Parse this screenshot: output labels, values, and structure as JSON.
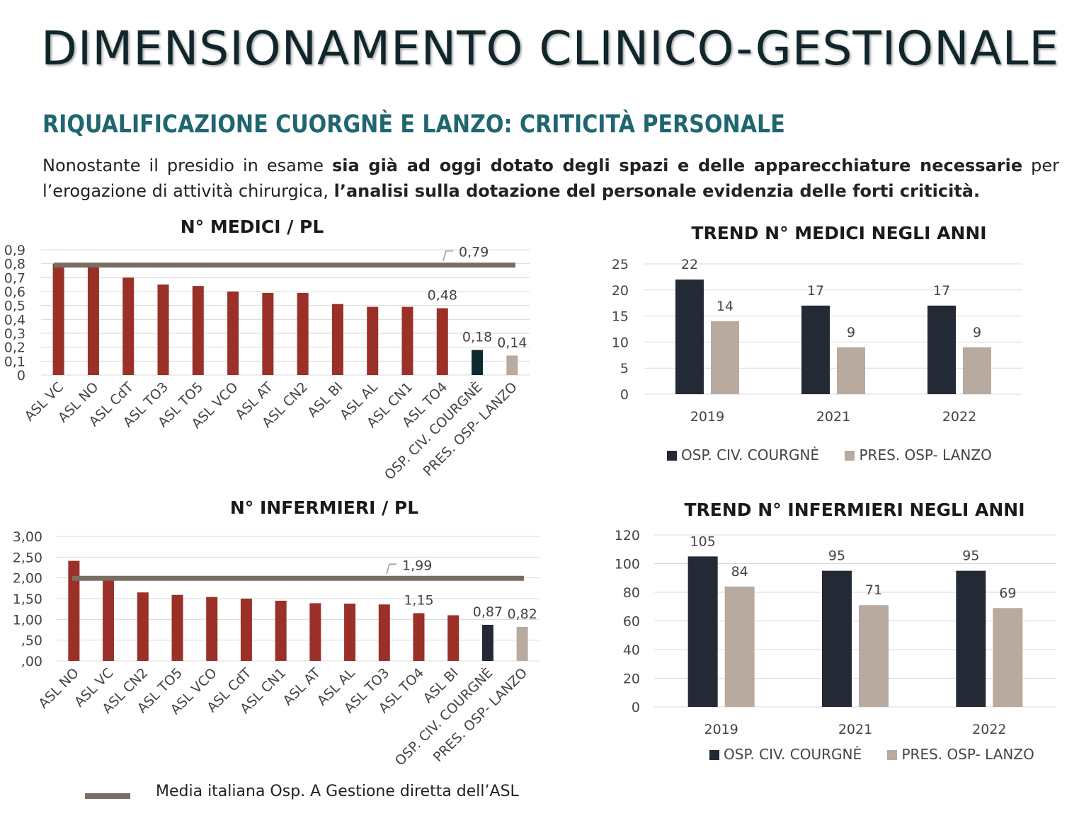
{
  "page": {
    "title": "DIMENSIONAMENTO CLINICO-GESTIONALE",
    "subtitle": "RIQUALIFICAZIONE CUORGNÈ E LANZO: CRITICITÀ PERSONALE",
    "intro": {
      "p1": "Nonostante il presidio in esame ",
      "b1": "sia già ad oggi dotato degli spazi e delle apparecchiature necessarie",
      "p2": " per l’erogazione di attività chirurgica, ",
      "b2": "l’analisi sulla dotazione del personale evidenzia delle forti criticità."
    },
    "footer": {
      "legend_label": "Media italiana Osp. A Gestione diretta dell’ASL"
    }
  },
  "colors": {
    "bar_red": "#9b3028",
    "bar_dark": "#0f2a2e",
    "bar_navy": "#232a36",
    "bar_beige": "#b8aa9e",
    "avg_line": "#7a6e62",
    "grid": "#d9d9d9"
  },
  "chart_data": [
    {
      "id": "medici",
      "type": "bar",
      "title": "N° MEDICI / PL",
      "categories": [
        "ASL VC",
        "ASL NO",
        "ASL CdT",
        "ASL TO3",
        "ASL TO5",
        "ASL VCO",
        "ASL AT",
        "ASL CN2",
        "ASL BI",
        "ASL AL",
        "ASL CN1",
        "ASL TO4",
        "OSP. CIV. COURGNÈ",
        "PRES. OSP- LANZO"
      ],
      "values": [
        0.8,
        0.78,
        0.7,
        0.65,
        0.64,
        0.6,
        0.59,
        0.59,
        0.51,
        0.49,
        0.49,
        0.48,
        0.18,
        0.14
      ],
      "bar_colors": [
        "red",
        "red",
        "red",
        "red",
        "red",
        "red",
        "red",
        "red",
        "red",
        "red",
        "red",
        "red",
        "dark",
        "beige"
      ],
      "labels": {
        "11": "0,48",
        "12": "0,18",
        "13": "0,14"
      },
      "average": 0.79,
      "average_label": "0,79",
      "yticks": [
        "0",
        "0,1",
        "0,2",
        "0,3",
        "0,4",
        "0,5",
        "0,6",
        "0,7",
        "0,8",
        "0,9"
      ],
      "ylim": [
        0,
        0.9
      ]
    },
    {
      "id": "infermieri",
      "type": "bar",
      "title": "N° INFERMIERI / PL",
      "categories": [
        "ASL NO",
        "ASL VC",
        "ASL CN2",
        "ASL TO5",
        "ASL VCO",
        "ASL CdT",
        "ASL CN1",
        "ASL AT",
        "ASL AL",
        "ASL TO3",
        "ASL TO4",
        "ASL BI",
        "OSP. CIV. COURGNÈ",
        "PRES. OSP- LANZO"
      ],
      "values": [
        2.41,
        1.95,
        1.65,
        1.59,
        1.54,
        1.5,
        1.45,
        1.39,
        1.38,
        1.36,
        1.15,
        1.1,
        0.87,
        0.82
      ],
      "bar_colors": [
        "red",
        "red",
        "red",
        "red",
        "red",
        "red",
        "red",
        "red",
        "red",
        "red",
        "red",
        "red",
        "navy",
        "beige"
      ],
      "labels": {
        "10": "1,15",
        "12": "0,87",
        "13": "0,82"
      },
      "average": 1.99,
      "average_label": "1,99",
      "yticks": [
        ",00",
        ",50",
        "1,00",
        "1,50",
        "2,00",
        "2,50",
        "3,00"
      ],
      "ylim": [
        0,
        3
      ]
    },
    {
      "id": "trend_medici",
      "type": "bar",
      "title": "TREND N° MEDICI NEGLI ANNI",
      "categories": [
        "2019",
        "2021",
        "2022"
      ],
      "series": [
        {
          "name": "OSP. CIV. COURGNÈ",
          "values": [
            22,
            17,
            17
          ]
        },
        {
          "name": "PRES. OSP- LANZO",
          "values": [
            14,
            9,
            9
          ]
        }
      ],
      "yticks": [
        "0",
        "5",
        "10",
        "15",
        "20",
        "25"
      ],
      "ylim": [
        0,
        25
      ]
    },
    {
      "id": "trend_infermieri",
      "type": "bar",
      "title": "TREND N° INFERMIERI NEGLI ANNI",
      "categories": [
        "2019",
        "2021",
        "2022"
      ],
      "series": [
        {
          "name": "OSP. CIV. COURGNÈ",
          "values": [
            105,
            95,
            95
          ]
        },
        {
          "name": "PRES. OSP- LANZO",
          "values": [
            84,
            71,
            69
          ]
        }
      ],
      "yticks": [
        "0",
        "20",
        "40",
        "60",
        "80",
        "100",
        "120"
      ],
      "ylim": [
        0,
        120
      ]
    }
  ]
}
